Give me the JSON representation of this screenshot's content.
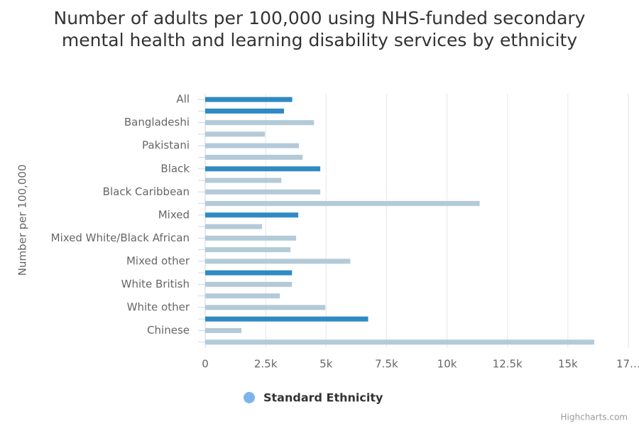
{
  "chart_data": {
    "type": "bar",
    "title": "Number of adults per 100,000 using NHS-funded secondary mental health and learning disability services by ethnicity",
    "y_axis_title": "Number per 100,000",
    "categories": [
      "All",
      null,
      "Bangladeshi",
      null,
      "Pakistani",
      null,
      "Black",
      null,
      "Black Caribbean",
      null,
      "Mixed",
      null,
      "Mixed White/Black African",
      null,
      "Mixed other",
      null,
      "White British",
      null,
      "White other",
      null,
      "Chinese",
      null
    ],
    "series": [
      {
        "name": "Standard Ethnicity",
        "color": "#7cb5ec",
        "values": [
          3600,
          3260,
          4500,
          2470,
          3880,
          4030,
          4760,
          3150,
          4760,
          11350,
          3850,
          2350,
          3760,
          3530,
          6000,
          3590,
          3590,
          3090,
          4970,
          6740,
          1500,
          16090
        ],
        "point_colors": [
          "#2f8ac4",
          "#2f8ac4",
          "#b3cad8",
          "#b3cad8",
          "#b3cad8",
          "#b3cad8",
          "#2f8ac4",
          "#b3cad8",
          "#b3cad8",
          "#b3cad8",
          "#2f8ac4",
          "#b3cad8",
          "#b3cad8",
          "#b3cad8",
          "#b3cad8",
          "#2f8ac4",
          "#b3cad8",
          "#b3cad8",
          "#b3cad8",
          "#2f8ac4",
          "#b3cad8",
          "#b3cad8"
        ]
      }
    ],
    "xlim": [
      0,
      17500
    ],
    "xticks": [
      0,
      {
        "value": 2500,
        "label": "2.5k"
      },
      {
        "value": 5000,
        "label": "5k"
      },
      {
        "value": 7500,
        "label": "7.5k"
      },
      {
        "value": 10000,
        "label": "10k"
      },
      {
        "value": 12500,
        "label": "12.5k"
      },
      {
        "value": 15000,
        "label": "15k"
      },
      {
        "value": 17500,
        "label": "17…"
      }
    ],
    "grid": true,
    "credits": "Highcharts.com"
  }
}
